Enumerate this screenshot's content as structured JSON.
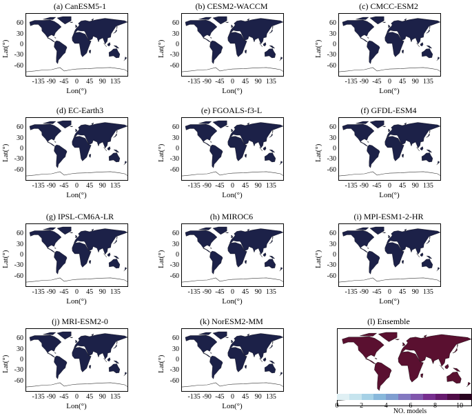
{
  "panels": [
    {
      "title": "(a) CanESM5-1"
    },
    {
      "title": "(b) CESM2-WACCM"
    },
    {
      "title": "(c) CMCC-ESM2"
    },
    {
      "title": "(d) EC-Earth3"
    },
    {
      "title": "(e) FGOALS-f3-L"
    },
    {
      "title": "(f) GFDL-ESM4"
    },
    {
      "title": "(g) IPSL-CM6A-LR"
    },
    {
      "title": "(h) MIROC6"
    },
    {
      "title": "(i) MPI-ESM1-2-HR"
    },
    {
      "title": "(j) MRI-ESM2-0"
    },
    {
      "title": "(k) NorESM2-MM"
    },
    {
      "title": "(l) Ensemble"
    }
  ],
  "axes": {
    "xlabel": "Lon(°)",
    "ylabel": "Lat(°)",
    "xticks": [
      "-135",
      "-90",
      "-45",
      "0",
      "45",
      "90",
      "135"
    ],
    "yticks": [
      "60",
      "30",
      "0",
      "-30",
      "-60"
    ]
  },
  "colors": {
    "land_model": "#1c2148",
    "land_ensemble": "#5a1030",
    "ocean": "#ffffff"
  },
  "colorbar": {
    "label": "NO. models",
    "ticks": [
      "0",
      "2",
      "4",
      "6",
      "8",
      "10"
    ],
    "colors": [
      "#e0f0f4",
      "#c6e4ee",
      "#a6d1e6",
      "#88b8db",
      "#7f9ed0",
      "#8378c0",
      "#8056ac",
      "#772f8f",
      "#661a6e",
      "#4f0c47",
      "#2a0520"
    ]
  }
}
